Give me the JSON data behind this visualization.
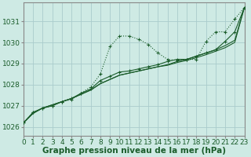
{
  "xlabel": "Graphe pression niveau de la mer (hPa)",
  "background_color": "#ceeae4",
  "grid_color": "#aacccc",
  "line_color": "#1a5c2a",
  "ylim": [
    1025.6,
    1031.9
  ],
  "xlim": [
    0,
    23
  ],
  "yticks": [
    1026,
    1027,
    1028,
    1029,
    1030,
    1031
  ],
  "xticks": [
    0,
    1,
    2,
    3,
    4,
    5,
    6,
    7,
    8,
    9,
    10,
    11,
    12,
    13,
    14,
    15,
    16,
    17,
    18,
    19,
    20,
    21,
    22,
    23
  ],
  "series_dotted": [
    1026.2,
    1026.7,
    1026.9,
    1027.0,
    1027.2,
    1027.3,
    1027.6,
    1027.9,
    1028.5,
    1029.8,
    1030.3,
    1030.3,
    1030.15,
    1029.9,
    1029.5,
    1029.2,
    1029.15,
    1029.2,
    1029.2,
    1030.05,
    1030.5,
    1030.5,
    1031.1,
    1031.65
  ],
  "series_smooth1": [
    1026.2,
    1026.65,
    1026.9,
    1027.05,
    1027.2,
    1027.35,
    1027.55,
    1027.75,
    1028.05,
    1028.25,
    1028.45,
    1028.55,
    1028.65,
    1028.75,
    1028.85,
    1028.95,
    1029.1,
    1029.2,
    1029.35,
    1029.5,
    1029.65,
    1029.85,
    1030.1,
    1031.65
  ],
  "series_smooth2": [
    1026.2,
    1026.65,
    1026.9,
    1027.05,
    1027.2,
    1027.35,
    1027.55,
    1027.75,
    1028.05,
    1028.25,
    1028.45,
    1028.55,
    1028.65,
    1028.75,
    1028.85,
    1028.92,
    1029.05,
    1029.15,
    1029.28,
    1029.42,
    1029.58,
    1029.75,
    1030.0,
    1031.65
  ],
  "series_marked": [
    1026.2,
    1026.7,
    1026.9,
    1027.0,
    1027.2,
    1027.35,
    1027.6,
    1027.8,
    1028.2,
    1028.4,
    1028.6,
    1028.65,
    1028.75,
    1028.85,
    1028.95,
    1029.1,
    1029.2,
    1029.2,
    1029.35,
    1029.5,
    1029.65,
    1030.05,
    1030.5,
    1031.65
  ],
  "font_color": "#1a5c2a",
  "label_fontsize": 7.5,
  "tick_fontsize": 6.5,
  "border_color": "#888888"
}
